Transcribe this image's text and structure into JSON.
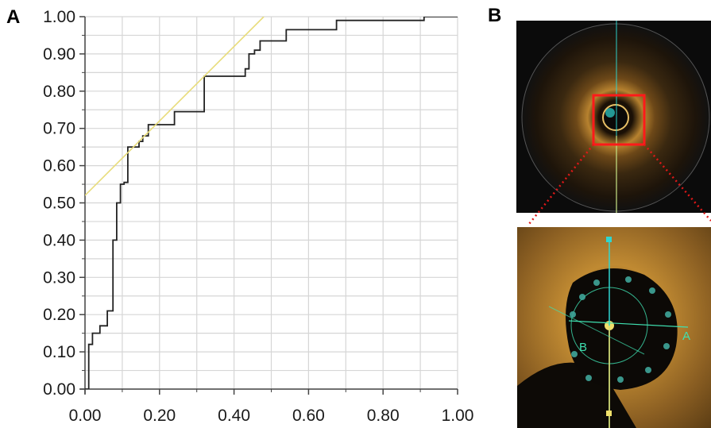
{
  "panels": {
    "a_label": "A",
    "b_label": "B"
  },
  "chart_data": {
    "type": "line",
    "title": "",
    "xlabel": "",
    "ylabel": "",
    "xlim": [
      0,
      1
    ],
    "ylim": [
      0,
      1
    ],
    "grid": true,
    "x_ticks": [
      "0.00",
      "0.20",
      "0.40",
      "0.60",
      "0.80",
      "1.00"
    ],
    "y_ticks": [
      "0.00",
      "0.10",
      "0.20",
      "0.30",
      "0.40",
      "0.50",
      "0.60",
      "0.70",
      "0.80",
      "0.90",
      "1.00"
    ],
    "series": [
      {
        "style": "step",
        "color": "#222222",
        "x": [
          0.0,
          0.01,
          0.01,
          0.02,
          0.02,
          0.04,
          0.04,
          0.06,
          0.06,
          0.075,
          0.075,
          0.085,
          0.085,
          0.095,
          0.095,
          0.105,
          0.105,
          0.115,
          0.115,
          0.145,
          0.145,
          0.155,
          0.155,
          0.17,
          0.17,
          0.24,
          0.24,
          0.32,
          0.32,
          0.43,
          0.43,
          0.44,
          0.44,
          0.455,
          0.455,
          0.47,
          0.47,
          0.5,
          0.5,
          0.54,
          0.54,
          0.63,
          0.63,
          0.675,
          0.675,
          0.91,
          0.91,
          0.93,
          0.93,
          1.0
        ],
        "y": [
          0.0,
          0.0,
          0.12,
          0.12,
          0.15,
          0.15,
          0.17,
          0.17,
          0.21,
          0.21,
          0.4,
          0.4,
          0.5,
          0.5,
          0.55,
          0.55,
          0.555,
          0.555,
          0.65,
          0.65,
          0.665,
          0.665,
          0.68,
          0.68,
          0.71,
          0.71,
          0.745,
          0.745,
          0.84,
          0.84,
          0.86,
          0.86,
          0.9,
          0.9,
          0.91,
          0.91,
          0.935,
          0.935,
          0.935,
          0.935,
          0.965,
          0.965,
          0.965,
          0.965,
          0.99,
          0.99,
          1.0,
          1.0,
          1.0,
          1.0
        ]
      },
      {
        "style": "line",
        "color": "#e8dc7a",
        "x": [
          0.0,
          0.48
        ],
        "y": [
          0.52,
          1.0
        ]
      }
    ]
  },
  "images": {
    "oct_overview": {
      "description_icon": "oct-cross-section-image",
      "highlight_color": "#ff1a1a",
      "guide_color": "#2fd6d0"
    },
    "oct_zoom": {
      "description_icon": "oct-zoom-image",
      "marker_a": "A",
      "marker_b": "B",
      "marker_color": "#3fe0b0"
    }
  }
}
